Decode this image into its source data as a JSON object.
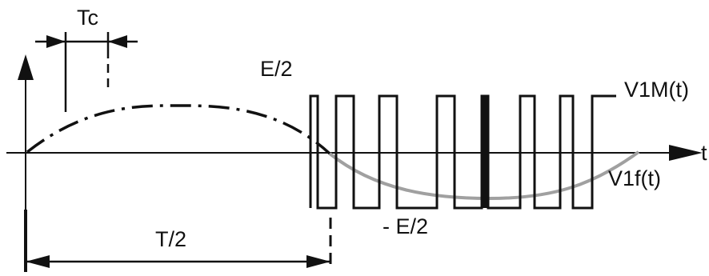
{
  "diagram": {
    "labels": {
      "tc": "Tc",
      "e_half": "E/2",
      "v1m": "V1M(t)",
      "time_axis": "t",
      "v1f": "V1f(t)",
      "t_half": "T/2",
      "neg_e_half": "- E/2"
    },
    "colors": {
      "line": "#111111",
      "fundamental": "#a0a0a0",
      "background": "#ffffff"
    }
  }
}
